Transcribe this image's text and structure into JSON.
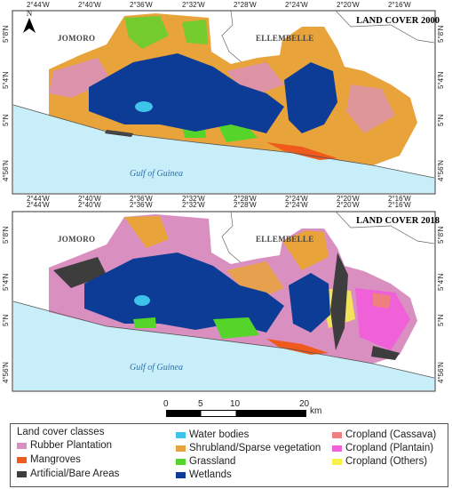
{
  "panels": [
    {
      "title": "LAND COVER 2000",
      "lon_ticks": [
        "2°44'W",
        "2°40'W",
        "2°36'W",
        "2°32'W",
        "2°28'W",
        "2°24'W",
        "2°20'W",
        "2°16'W"
      ],
      "lat_ticks": [
        "5°8'N",
        "5°4'N",
        "5°N",
        "4°56'N"
      ],
      "regions": [
        "JOMORO",
        "ELLEMBELLE"
      ],
      "sea_label": "Gulf of Guinea"
    },
    {
      "title": "LAND COVER 2018",
      "lon_ticks": [
        "2°44'W",
        "2°40'W",
        "2°36'W",
        "2°32'W",
        "2°28'W",
        "2°24'W",
        "2°20'W",
        "2°16'W"
      ],
      "lat_ticks": [
        "5°8'N",
        "5°4'N",
        "5°N",
        "4°56'N"
      ],
      "regions": [
        "JOMORO",
        "ELLEMBELLE"
      ],
      "sea_label": "Gulf of Guinea"
    }
  ],
  "north_arrow": "N",
  "scale_bar": {
    "labels": [
      "0",
      "5",
      "10",
      "20"
    ],
    "unit": "km"
  },
  "legend": {
    "heading": "Land cover classes",
    "items": [
      {
        "label": "Rubber Plantation",
        "color": "#d98fc0"
      },
      {
        "label": "Mangroves",
        "color": "#ef5a1c"
      },
      {
        "label": "Artificial/Bare Areas",
        "color": "#3d3d3d"
      },
      {
        "label": "Water bodies",
        "color": "#3ec3ea"
      },
      {
        "label": "Shrubland/Sparse vegetation",
        "color": "#e8a33a"
      },
      {
        "label": "Grassland",
        "color": "#55d42a"
      },
      {
        "label": "Wetlands",
        "color": "#0c3c96"
      },
      {
        "label": "Cropland (Cassava)",
        "color": "#f08080"
      },
      {
        "label": "Cropland (Plantain)",
        "color": "#f060d8"
      },
      {
        "label": "Cropland (Others)",
        "color": "#f7f24a"
      }
    ]
  },
  "colors": {
    "sea": "#c8eefa",
    "land_outline": "#555555",
    "frame": "#333333"
  }
}
